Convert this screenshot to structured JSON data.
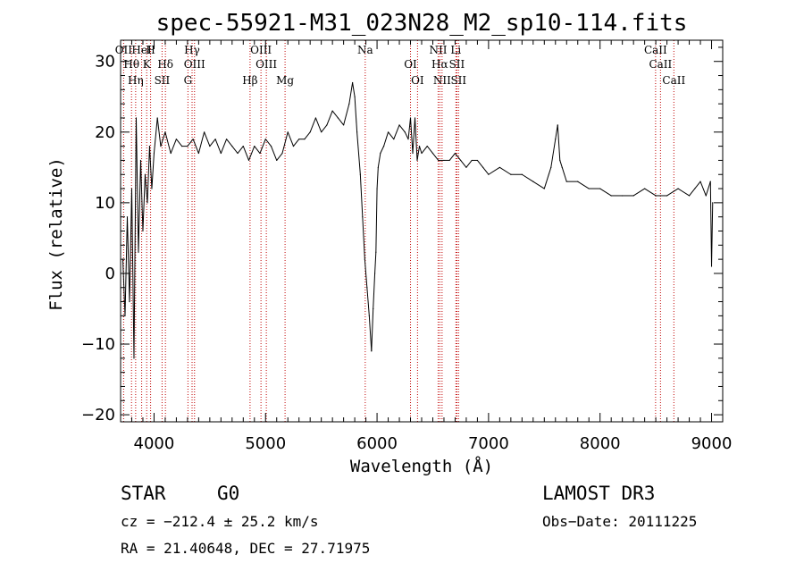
{
  "chart_data": {
    "type": "line",
    "title": "spec-55921-M31_023N28_M2_sp10-114.fits",
    "xlabel": "Wavelength (Å)",
    "ylabel": "Flux (relative)",
    "xlim": [
      3700,
      9100
    ],
    "ylim": [
      -21,
      33
    ],
    "xticks": [
      4000,
      5000,
      6000,
      7000,
      8000,
      9000
    ],
    "yticks": [
      -20,
      -10,
      0,
      10,
      20,
      30
    ],
    "xtick_labels": [
      "4000",
      "5000",
      "6000",
      "7000",
      "8000",
      "9000"
    ],
    "ytick_labels": [
      "−20",
      "−10",
      "0",
      "10",
      "20",
      "30"
    ],
    "series": [
      {
        "name": "flux",
        "x": [
          3720,
          3740,
          3760,
          3780,
          3800,
          3820,
          3840,
          3860,
          3880,
          3900,
          3920,
          3940,
          3960,
          3980,
          4000,
          4030,
          4060,
          4100,
          4150,
          4200,
          4250,
          4300,
          4350,
          4400,
          4450,
          4500,
          4550,
          4600,
          4650,
          4700,
          4750,
          4800,
          4850,
          4900,
          4950,
          5000,
          5050,
          5100,
          5150,
          5200,
          5250,
          5300,
          5350,
          5400,
          5450,
          5500,
          5550,
          5600,
          5650,
          5700,
          5750,
          5780,
          5800,
          5820,
          5850,
          5870,
          5890,
          5910,
          5930,
          5950,
          5965,
          5980,
          5990,
          6000,
          6010,
          6030,
          6060,
          6100,
          6150,
          6200,
          6250,
          6280,
          6300,
          6320,
          6340,
          6360,
          6380,
          6400,
          6450,
          6500,
          6550,
          6600,
          6650,
          6700,
          6750,
          6800,
          6850,
          6900,
          6950,
          7000,
          7100,
          7200,
          7300,
          7400,
          7500,
          7560,
          7600,
          7620,
          7640,
          7660,
          7700,
          7800,
          7900,
          8000,
          8100,
          8200,
          8300,
          8400,
          8500,
          8600,
          8700,
          8800,
          8850,
          8900,
          8950,
          8990,
          9000,
          9010
        ],
        "values": [
          2,
          -6,
          8,
          -4,
          12,
          -12,
          22,
          3,
          16,
          6,
          14,
          10,
          18,
          12,
          17,
          22,
          18,
          20,
          17,
          19,
          18,
          18,
          19,
          17,
          20,
          18,
          19,
          17,
          19,
          18,
          17,
          18,
          16,
          18,
          17,
          19,
          18,
          16,
          17,
          20,
          18,
          19,
          19,
          20,
          22,
          20,
          21,
          23,
          22,
          21,
          24,
          27,
          25,
          20,
          14,
          8,
          2,
          -2,
          -6,
          -11,
          -5,
          0,
          3,
          12,
          15,
          17,
          18,
          20,
          19,
          21,
          20,
          19,
          22,
          17,
          22,
          16,
          18,
          17,
          18,
          17,
          16,
          16,
          16,
          17,
          16,
          15,
          16,
          16,
          15,
          14,
          15,
          14,
          14,
          13,
          12,
          15,
          19,
          21,
          16,
          15,
          13,
          13,
          12,
          12,
          11,
          11,
          11,
          12,
          11,
          11,
          12,
          11,
          12,
          13,
          11,
          13,
          1,
          10
        ]
      }
    ],
    "lines": [
      {
        "name": "OII",
        "wl": 3727
      },
      {
        "name": "Hθ",
        "wl": 3798
      },
      {
        "name": "Hη",
        "wl": 3835
      },
      {
        "name": "HeI",
        "wl": 3889
      },
      {
        "name": "K",
        "wl": 3934
      },
      {
        "name": "SII",
        "wl": 4072
      },
      {
        "name": "H",
        "wl": 3969
      },
      {
        "name": "Hδ",
        "wl": 4102
      },
      {
        "name": "G",
        "wl": 4304
      },
      {
        "name": "Hγ",
        "wl": 4341
      },
      {
        "name": "OIII",
        "wl": 4363
      },
      {
        "name": "Hβ",
        "wl": 4861
      },
      {
        "name": "OIII",
        "wl": 4959
      },
      {
        "name": "OIII",
        "wl": 5007
      },
      {
        "name": "Mg",
        "wl": 5175
      },
      {
        "name": "Na",
        "wl": 5894
      },
      {
        "name": "OI",
        "wl": 6300
      },
      {
        "name": "OI",
        "wl": 6363
      },
      {
        "name": "NII",
        "wl": 6548
      },
      {
        "name": "Hα",
        "wl": 6563
      },
      {
        "name": "NII",
        "wl": 6583
      },
      {
        "name": "Li",
        "wl": 6707
      },
      {
        "name": "SII",
        "wl": 6716
      },
      {
        "name": "SII",
        "wl": 6731
      },
      {
        "name": "CaII",
        "wl": 8498
      },
      {
        "name": "CaII",
        "wl": 8542
      },
      {
        "name": "CaII",
        "wl": 8662
      }
    ],
    "line_color": "#c00000",
    "data_color": "#000000"
  },
  "info": {
    "objclass": "STAR",
    "subclass": "G0",
    "survey": "LAMOST DR3",
    "cz": "cz = −212.4 ± 25.2 km/s",
    "obsdate": "Obs−Date: 20111225",
    "coords": "RA =  21.40648, DEC =  27.71975"
  }
}
